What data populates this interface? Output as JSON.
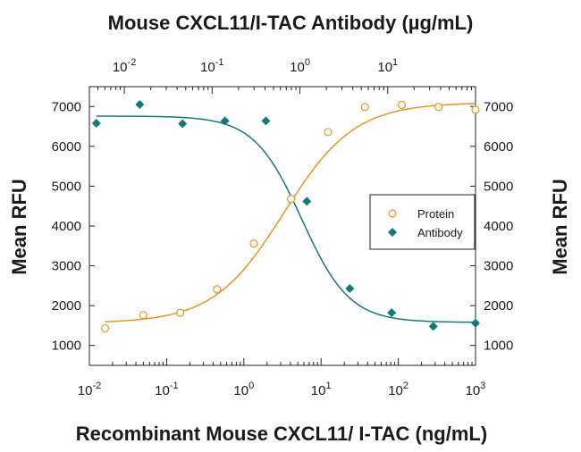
{
  "chart_data": {
    "type": "scatter",
    "title": "Mouse CXCL11/I-TAC Antibody (µg/mL)",
    "xlabel": "Recombinant Mouse CXCL11/ I-TAC (ng/mL)",
    "ylabel": "Mean RFU",
    "ylabel_right": "Mean RFU",
    "x_scale": "log",
    "xlim": [
      0.01,
      1000
    ],
    "ylim": [
      500,
      7500
    ],
    "y_ticks": [
      1000,
      2000,
      3000,
      4000,
      5000,
      6000,
      7000
    ],
    "x_ticks": [
      {
        "value": 0.01,
        "base": "10",
        "exp": "-2"
      },
      {
        "value": 0.1,
        "base": "10",
        "exp": "-1"
      },
      {
        "value": 1,
        "base": "10",
        "exp": "0"
      },
      {
        "value": 10,
        "base": "10",
        "exp": "1"
      },
      {
        "value": 100,
        "base": "10",
        "exp": "2"
      },
      {
        "value": 1000,
        "base": "10",
        "exp": "3"
      }
    ],
    "top_axis": {
      "scale": "log",
      "xlim": [
        0.004,
        100
      ],
      "ticks": [
        {
          "value": 0.01,
          "base": "10",
          "exp": "-2"
        },
        {
          "value": 0.1,
          "base": "10",
          "exp": "-1"
        },
        {
          "value": 1,
          "base": "10",
          "exp": "0"
        },
        {
          "value": 10,
          "base": "10",
          "exp": "1"
        }
      ]
    },
    "series": [
      {
        "name": "Protein",
        "color": "#e8951e",
        "marker": "open-circle",
        "axis": "bottom",
        "x": [
          0.016,
          0.05,
          0.15,
          0.45,
          1.35,
          4.1,
          12.3,
          37,
          111,
          333,
          1000
        ],
        "y": [
          1430,
          1760,
          1820,
          2410,
          3560,
          4680,
          6360,
          6990,
          7040,
          6990,
          6920
        ],
        "fit": {
          "bottom": 1560,
          "top": 7100,
          "ec50": 3.3,
          "hill": 0.95
        }
      },
      {
        "name": "Antibody",
        "color": "#137a7a",
        "marker": "filled-diamond",
        "axis": "top",
        "x": [
          0.0048,
          0.015,
          0.046,
          0.14,
          0.41,
          1.2,
          3.7,
          11.1,
          33,
          100
        ],
        "y": [
          6580,
          7050,
          6570,
          6640,
          6640,
          4620,
          2430,
          1820,
          1480,
          1560
        ],
        "fit": {
          "bottom": 1580,
          "top": 6760,
          "ec50": 1.05,
          "hill": -1.6
        }
      }
    ],
    "legend": {
      "position": "right-middle",
      "entries": [
        "Protein",
        "Antibody"
      ]
    },
    "grid": false,
    "right_axis_mirror": true
  }
}
